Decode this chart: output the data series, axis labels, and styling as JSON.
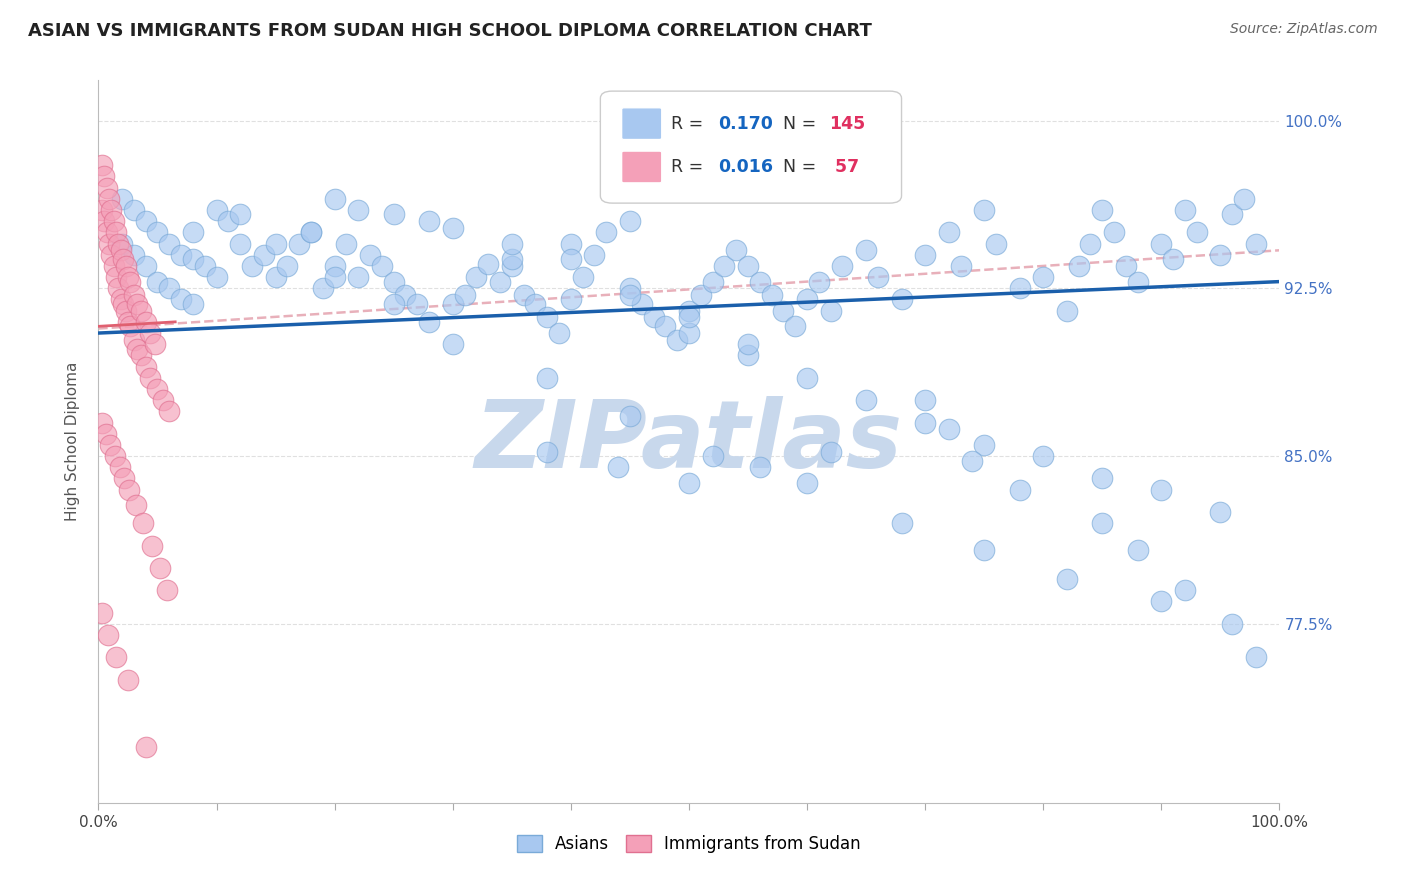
{
  "title": "ASIAN VS IMMIGRANTS FROM SUDAN HIGH SCHOOL DIPLOMA CORRELATION CHART",
  "source": "Source: ZipAtlas.com",
  "ylabel": "High School Diploma",
  "xmin": 0.0,
  "xmax": 1.0,
  "ymin": 0.695,
  "ymax": 1.018,
  "yticks": [
    0.775,
    0.85,
    0.925,
    1.0
  ],
  "ytick_labels": [
    "77.5%",
    "85.0%",
    "92.5%",
    "100.0%"
  ],
  "blue_color": "#A8C8F0",
  "blue_edge_color": "#7AAAD8",
  "pink_color": "#F4A0B8",
  "pink_edge_color": "#E07090",
  "blue_line_color": "#1A5FAB",
  "pink_line_color": "#E06070",
  "dashed_color": "#E8B0BA",
  "grid_color": "#E0E0E0",
  "grid_style": "--",
  "watermark_text": "ZIPatlas",
  "watermark_color": "#C8D8EC",
  "title_fontsize": 13,
  "axis_label_fontsize": 11,
  "tick_fontsize": 11,
  "right_tick_color": "#4472C4",
  "legend_r_color": "#1565C0",
  "legend_n_color": "#E03060",
  "blue_trend_x": [
    0.0,
    1.0
  ],
  "blue_trend_y": [
    0.905,
    0.928
  ],
  "pink_trend_x": [
    0.0,
    0.065
  ],
  "pink_trend_y": [
    0.908,
    0.91
  ],
  "dashed_trend_x": [
    0.0,
    1.0
  ],
  "dashed_trend_y": [
    0.907,
    0.942
  ],
  "blue_x": [
    0.02,
    0.02,
    0.03,
    0.03,
    0.04,
    0.04,
    0.05,
    0.05,
    0.06,
    0.06,
    0.07,
    0.07,
    0.08,
    0.08,
    0.09,
    0.1,
    0.1,
    0.11,
    0.12,
    0.13,
    0.14,
    0.15,
    0.16,
    0.17,
    0.18,
    0.19,
    0.2,
    0.21,
    0.22,
    0.23,
    0.24,
    0.25,
    0.26,
    0.27,
    0.28,
    0.3,
    0.31,
    0.32,
    0.33,
    0.34,
    0.35,
    0.36,
    0.37,
    0.38,
    0.39,
    0.4,
    0.41,
    0.42,
    0.43,
    0.45,
    0.46,
    0.47,
    0.48,
    0.49,
    0.5,
    0.51,
    0.52,
    0.53,
    0.54,
    0.55,
    0.56,
    0.57,
    0.58,
    0.59,
    0.6,
    0.61,
    0.62,
    0.63,
    0.65,
    0.66,
    0.68,
    0.7,
    0.72,
    0.73,
    0.75,
    0.76,
    0.78,
    0.8,
    0.82,
    0.83,
    0.84,
    0.85,
    0.86,
    0.87,
    0.88,
    0.9,
    0.91,
    0.92,
    0.93,
    0.95,
    0.96,
    0.97,
    0.98,
    0.12,
    0.18,
    0.22,
    0.28,
    0.35,
    0.4,
    0.45,
    0.5,
    0.55,
    0.6,
    0.65,
    0.7,
    0.75,
    0.8,
    0.85,
    0.9,
    0.95,
    0.08,
    0.15,
    0.2,
    0.25,
    0.3,
    0.38,
    0.45,
    0.52,
    0.6,
    0.68,
    0.75,
    0.82,
    0.9,
    0.38,
    0.44,
    0.5,
    0.56,
    0.62,
    0.2,
    0.25,
    0.3,
    0.35,
    0.4,
    0.45,
    0.5,
    0.55,
    0.7,
    0.72,
    0.74,
    0.78,
    0.85,
    0.88,
    0.92,
    0.96,
    0.98
  ],
  "blue_y": [
    0.965,
    0.945,
    0.96,
    0.94,
    0.955,
    0.935,
    0.95,
    0.928,
    0.945,
    0.925,
    0.94,
    0.92,
    0.938,
    0.918,
    0.935,
    0.96,
    0.93,
    0.955,
    0.945,
    0.935,
    0.94,
    0.93,
    0.935,
    0.945,
    0.95,
    0.925,
    0.935,
    0.945,
    0.93,
    0.94,
    0.935,
    0.928,
    0.922,
    0.918,
    0.91,
    0.918,
    0.922,
    0.93,
    0.936,
    0.928,
    0.935,
    0.922,
    0.918,
    0.912,
    0.905,
    0.92,
    0.93,
    0.94,
    0.95,
    0.925,
    0.918,
    0.912,
    0.908,
    0.902,
    0.915,
    0.922,
    0.928,
    0.935,
    0.942,
    0.935,
    0.928,
    0.922,
    0.915,
    0.908,
    0.92,
    0.928,
    0.915,
    0.935,
    0.942,
    0.93,
    0.92,
    0.94,
    0.95,
    0.935,
    0.96,
    0.945,
    0.925,
    0.93,
    0.915,
    0.935,
    0.945,
    0.96,
    0.95,
    0.935,
    0.928,
    0.945,
    0.938,
    0.96,
    0.95,
    0.94,
    0.958,
    0.965,
    0.945,
    0.958,
    0.95,
    0.96,
    0.955,
    0.938,
    0.945,
    0.955,
    0.905,
    0.895,
    0.885,
    0.875,
    0.865,
    0.855,
    0.85,
    0.84,
    0.835,
    0.825,
    0.95,
    0.945,
    0.93,
    0.918,
    0.9,
    0.885,
    0.868,
    0.85,
    0.838,
    0.82,
    0.808,
    0.795,
    0.785,
    0.852,
    0.845,
    0.838,
    0.845,
    0.852,
    0.965,
    0.958,
    0.952,
    0.945,
    0.938,
    0.922,
    0.912,
    0.9,
    0.875,
    0.862,
    0.848,
    0.835,
    0.82,
    0.808,
    0.79,
    0.775,
    0.76
  ],
  "pink_x": [
    0.003,
    0.003,
    0.005,
    0.005,
    0.007,
    0.007,
    0.009,
    0.009,
    0.011,
    0.011,
    0.013,
    0.013,
    0.015,
    0.015,
    0.017,
    0.017,
    0.019,
    0.019,
    0.021,
    0.021,
    0.023,
    0.023,
    0.025,
    0.025,
    0.027,
    0.027,
    0.03,
    0.03,
    0.033,
    0.033,
    0.036,
    0.036,
    0.04,
    0.04,
    0.044,
    0.044,
    0.048,
    0.05,
    0.055,
    0.06,
    0.003,
    0.006,
    0.01,
    0.014,
    0.018,
    0.022,
    0.026,
    0.032,
    0.038,
    0.045,
    0.052,
    0.058,
    0.003,
    0.008,
    0.015,
    0.025,
    0.04
  ],
  "pink_y": [
    0.98,
    0.96,
    0.975,
    0.955,
    0.97,
    0.95,
    0.965,
    0.945,
    0.96,
    0.94,
    0.955,
    0.935,
    0.95,
    0.93,
    0.945,
    0.925,
    0.942,
    0.92,
    0.938,
    0.918,
    0.935,
    0.915,
    0.93,
    0.91,
    0.928,
    0.908,
    0.922,
    0.902,
    0.918,
    0.898,
    0.915,
    0.895,
    0.91,
    0.89,
    0.905,
    0.885,
    0.9,
    0.88,
    0.875,
    0.87,
    0.865,
    0.86,
    0.855,
    0.85,
    0.845,
    0.84,
    0.835,
    0.828,
    0.82,
    0.81,
    0.8,
    0.79,
    0.78,
    0.77,
    0.76,
    0.75,
    0.72
  ]
}
